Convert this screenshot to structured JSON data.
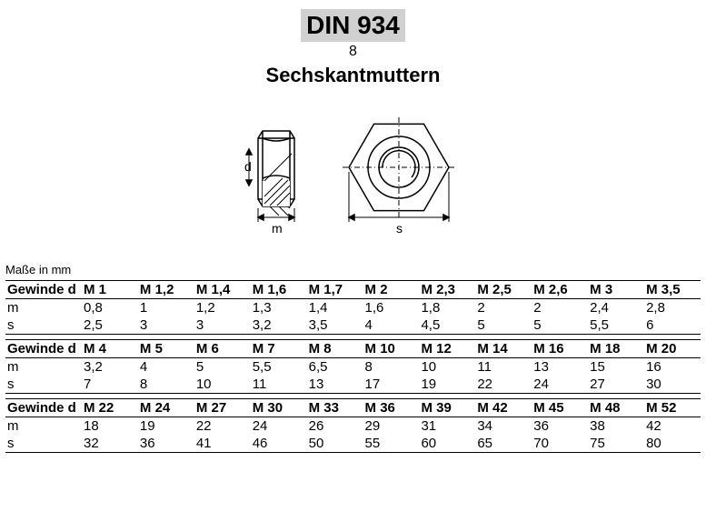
{
  "header": {
    "standard": "DIN 934",
    "grade": "8",
    "title": "Sechskantmuttern"
  },
  "diagram": {
    "label_d": "d",
    "label_m": "m",
    "label_s": "s"
  },
  "unit_note": "Maße in mm",
  "labels": {
    "thread": "Gewinde d",
    "m": "m",
    "s": "s"
  },
  "groups": [
    {
      "thread": [
        "M 1",
        "M 1,2",
        "M 1,4",
        "M 1,6",
        "M 1,7",
        "M 2",
        "M 2,3",
        "M 2,5",
        "M 2,6",
        "M 3",
        "M 3,5"
      ],
      "m": [
        "0,8",
        "1",
        "1,2",
        "1,3",
        "1,4",
        "1,6",
        "1,8",
        "2",
        "2",
        "2,4",
        "2,8"
      ],
      "s": [
        "2,5",
        "3",
        "3",
        "3,2",
        "3,5",
        "4",
        "4,5",
        "5",
        "5",
        "5,5",
        "6"
      ]
    },
    {
      "thread": [
        "M 4",
        "M 5",
        "M 6",
        "M 7",
        "M 8",
        "M 10",
        "M 12",
        "M 14",
        "M 16",
        "M 18",
        "M 20"
      ],
      "m": [
        "3,2",
        "4",
        "5",
        "5,5",
        "6,5",
        "8",
        "10",
        "11",
        "13",
        "15",
        "16"
      ],
      "s": [
        "7",
        "8",
        "10",
        "11",
        "13",
        "17",
        "19",
        "22",
        "24",
        "27",
        "30"
      ]
    },
    {
      "thread": [
        "M 22",
        "M 24",
        "M 27",
        "M 30",
        "M 33",
        "M 36",
        "M 39",
        "M 42",
        "M 45",
        "M 48",
        "M 52"
      ],
      "m": [
        "18",
        "19",
        "22",
        "24",
        "26",
        "29",
        "31",
        "34",
        "36",
        "38",
        "42"
      ],
      "s": [
        "32",
        "36",
        "41",
        "46",
        "50",
        "55",
        "60",
        "65",
        "70",
        "75",
        "80"
      ]
    }
  ],
  "style": {
    "standard_bg": "#d0d0d0",
    "text_color": "#000000",
    "border_color": "#000000",
    "font_family": "Arial",
    "standard_fontsize": 28,
    "title_fontsize": 22,
    "table_fontsize": 15
  }
}
